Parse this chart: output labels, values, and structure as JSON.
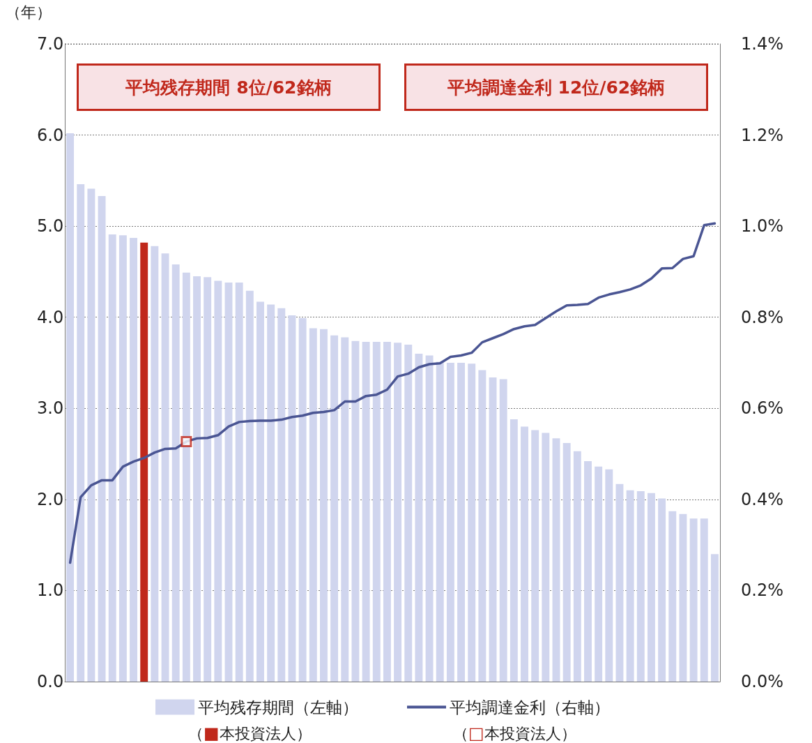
{
  "chart_data": {
    "type": "bar",
    "ylabel": "（年）",
    "categories": [
      null,
      null,
      null,
      null,
      null,
      null,
      null,
      null,
      null,
      null,
      null,
      null,
      null,
      null,
      null,
      null,
      null,
      null,
      null,
      null,
      null,
      null,
      null,
      null,
      null,
      null,
      null,
      null,
      null,
      null,
      null,
      null,
      null,
      null,
      null,
      null,
      null,
      null,
      null,
      null,
      null,
      null,
      null,
      null,
      null,
      null,
      null,
      null,
      null,
      null,
      null,
      null,
      null,
      null,
      null,
      null,
      null,
      null,
      null,
      null,
      null,
      null
    ],
    "series": [
      {
        "name": "平均残存期間（左軸）",
        "color": "#d0d5ee",
        "colors": [
          "#d0d5ee",
          "#d0d5ee",
          "#d0d5ee",
          "#d0d5ee",
          "#d0d5ee",
          "#d0d5ee",
          "#d0d5ee",
          "#c0281b",
          "#d0d5ee",
          "#d0d5ee",
          "#d0d5ee",
          "#d0d5ee",
          "#d0d5ee",
          "#d0d5ee",
          "#d0d5ee",
          "#d0d5ee",
          "#d0d5ee",
          "#d0d5ee",
          "#d0d5ee",
          "#d0d5ee",
          "#d0d5ee",
          "#d0d5ee",
          "#d0d5ee",
          "#d0d5ee",
          "#d0d5ee",
          "#d0d5ee",
          "#d0d5ee",
          "#d0d5ee",
          "#d0d5ee",
          "#d0d5ee",
          "#d0d5ee",
          "#d0d5ee",
          "#d0d5ee",
          "#d0d5ee",
          "#d0d5ee",
          "#d0d5ee",
          "#d0d5ee",
          "#d0d5ee",
          "#d0d5ee",
          "#d0d5ee",
          "#d0d5ee",
          "#d0d5ee",
          "#d0d5ee",
          "#d0d5ee",
          "#d0d5ee",
          "#d0d5ee",
          "#d0d5ee",
          "#d0d5ee",
          "#d0d5ee",
          "#d0d5ee",
          "#d0d5ee",
          "#d0d5ee",
          "#d0d5ee",
          "#d0d5ee",
          "#d0d5ee",
          "#d0d5ee",
          "#d0d5ee",
          "#d0d5ee",
          "#d0d5ee",
          "#d0d5ee",
          "#d0d5ee",
          "#d0d5ee"
        ],
        "values": [
          6.02,
          5.46,
          5.41,
          5.33,
          4.91,
          4.9,
          4.87,
          4.82,
          4.78,
          4.7,
          4.58,
          4.49,
          4.45,
          4.44,
          4.4,
          4.38,
          4.38,
          4.29,
          4.17,
          4.14,
          4.1,
          4.02,
          3.99,
          3.88,
          3.87,
          3.8,
          3.78,
          3.74,
          3.73,
          3.73,
          3.73,
          3.72,
          3.7,
          3.6,
          3.58,
          3.51,
          3.5,
          3.5,
          3.49,
          3.42,
          3.34,
          3.32,
          2.88,
          2.8,
          2.76,
          2.73,
          2.67,
          2.62,
          2.53,
          2.42,
          2.36,
          2.33,
          2.17,
          2.1,
          2.09,
          2.07,
          2.01,
          1.87,
          1.84,
          1.79,
          1.79,
          1.4
        ]
      },
      {
        "name": "平均調達金利（右軸）",
        "type": "line",
        "axis": "y2",
        "color": "#4a5593",
        "marker": "none",
        "line_style": "solid",
        "values": [
          0.261,
          0.405,
          0.431,
          0.442,
          0.442,
          0.472,
          0.483,
          0.491,
          0.503,
          0.511,
          0.512,
          0.527,
          0.534,
          0.535,
          0.541,
          0.56,
          0.57,
          0.572,
          0.573,
          0.573,
          0.575,
          0.581,
          0.584,
          0.59,
          0.592,
          0.596,
          0.615,
          0.615,
          0.627,
          0.63,
          0.641,
          0.67,
          0.676,
          0.69,
          0.697,
          0.699,
          0.713,
          0.716,
          0.722,
          0.745,
          0.754,
          0.763,
          0.774,
          0.78,
          0.783,
          0.798,
          0.813,
          0.826,
          0.827,
          0.829,
          0.843,
          0.85,
          0.855,
          0.861,
          0.87,
          0.885,
          0.907,
          0.908,
          0.928,
          0.934,
          1.002,
          1.006
        ]
      },
      {
        "type": "scatter",
        "axis": "y2",
        "color": "#c0281b",
        "marker": "square",
        "values": [
          null,
          null,
          null,
          null,
          null,
          null,
          null,
          null,
          null,
          null,
          null,
          0.527,
          null,
          null,
          null,
          null,
          null,
          null,
          null,
          null,
          null,
          null,
          null,
          null,
          null,
          null,
          null,
          null,
          null,
          null,
          null,
          null,
          null,
          null,
          null,
          null,
          null,
          null,
          null,
          null,
          null,
          null,
          null,
          null,
          null,
          null,
          null,
          null,
          null,
          null,
          null,
          null,
          null,
          null,
          null,
          null,
          null,
          null,
          null,
          null,
          null,
          null
        ]
      }
    ],
    "ylim": [
      0,
      7
    ],
    "yticks": [
      {
        "value": 0,
        "label": "0.0"
      },
      {
        "value": 1,
        "label": "1.0"
      },
      {
        "value": 2,
        "label": "2.0"
      },
      {
        "value": 3,
        "label": "3.0"
      },
      {
        "value": 4,
        "label": "4.0"
      },
      {
        "value": 5,
        "label": "5.0"
      },
      {
        "value": 6,
        "label": "6.0"
      },
      {
        "value": 7,
        "label": "7.0"
      }
    ],
    "y2lim": [
      0,
      1.4
    ],
    "y2ticks": [
      {
        "value": 0,
        "label": "0.0%"
      },
      {
        "value": 0.2,
        "label": "0.2%"
      },
      {
        "value": 0.4,
        "label": "0.4%"
      },
      {
        "value": 0.6,
        "label": "0.6%"
      },
      {
        "value": 0.8,
        "label": "0.8%"
      },
      {
        "value": 1.0,
        "label": "1.0%"
      },
      {
        "value": 1.2,
        "label": "1.2%"
      },
      {
        "value": 1.4,
        "label": "1.4%"
      }
    ],
    "grid": "y",
    "legend": "bottom",
    "annotations": [
      "平均残存期間 8位/62銘柄",
      "平均調達金利 12位/62銘柄",
      "（■本投資法人）",
      "（□本投資法人）"
    ]
  }
}
